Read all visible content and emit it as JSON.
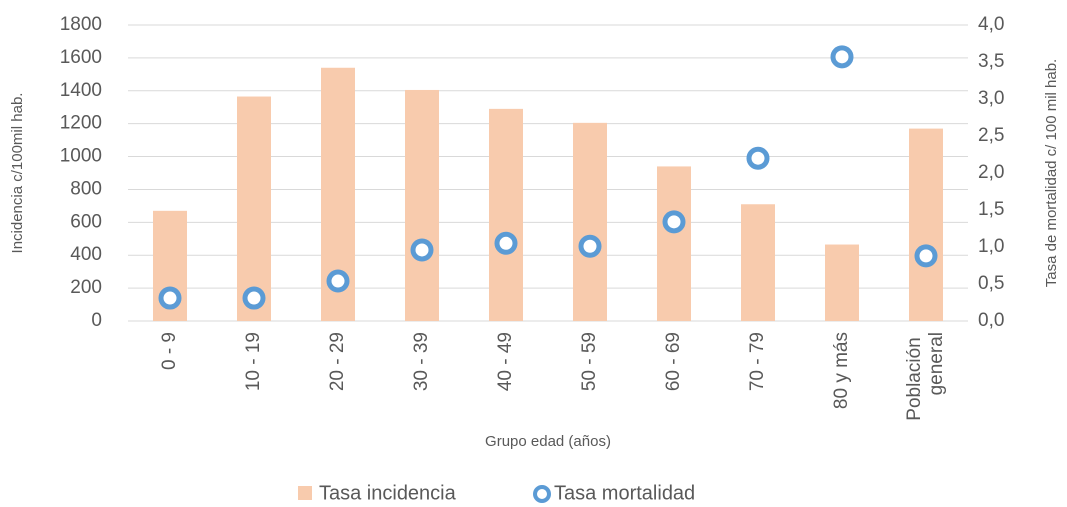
{
  "chart_data": {
    "type": "bar",
    "x_label": "Grupo edad (años)",
    "y_label": "Incidencia c/100mil hab.",
    "y2_label": "Tasa de mortalidad c/ 100 mil hab.",
    "categories": [
      "0 - 9",
      "10 - 19",
      "20 - 29",
      "30 - 39",
      "40 - 49",
      "50 - 59",
      "60 - 69",
      "70 - 79",
      "80 y más",
      "Población general"
    ],
    "series": [
      {
        "name": "Tasa incidencia",
        "type": "bar",
        "color": "#f8cbad",
        "values": [
          670,
          1365,
          1540,
          1405,
          1290,
          1205,
          940,
          710,
          465,
          1170
        ]
      },
      {
        "name": "Tasa mortalidad",
        "type": "scatter",
        "axis": "y2",
        "color": "#5b9bd5",
        "values": [
          0.31,
          0.31,
          0.54,
          0.96,
          1.05,
          1.01,
          1.34,
          2.2,
          3.57,
          0.88
        ]
      }
    ],
    "ylim": [
      0,
      1800
    ],
    "yticks": [
      0,
      200,
      400,
      600,
      800,
      1000,
      1200,
      1400,
      1600,
      1800
    ],
    "y2lim": [
      0,
      4
    ],
    "y2ticks": [
      {
        "value": 0,
        "label": "0,0"
      },
      {
        "value": 0.5,
        "label": "0,5"
      },
      {
        "value": 1,
        "label": "1,0"
      },
      {
        "value": 1.5,
        "label": "1,5"
      },
      {
        "value": 2,
        "label": "2,0"
      },
      {
        "value": 2.5,
        "label": "2,5"
      },
      {
        "value": 3,
        "label": "3,0"
      },
      {
        "value": 3.5,
        "label": "3,5"
      },
      {
        "value": 4,
        "label": "4,0"
      }
    ],
    "grid": true,
    "legend": "bottom"
  }
}
